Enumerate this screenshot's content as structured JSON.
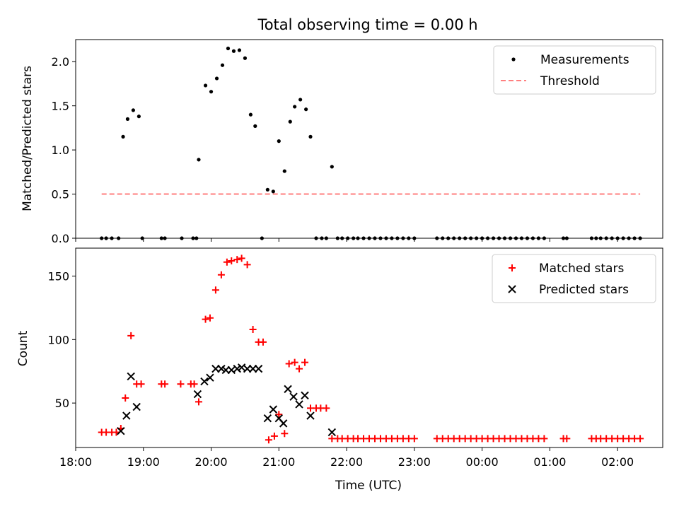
{
  "figure": {
    "title": "Total observing time = 0.00 h",
    "xlabel": "Time (UTC)",
    "xticks": [
      "18:00",
      "19:00",
      "20:00",
      "21:00",
      "22:00",
      "23:00",
      "00:00",
      "01:00",
      "02:00"
    ]
  },
  "chart_data": [
    {
      "type": "scatter",
      "ylabel": "Matched/Predicted stars",
      "xlim": [
        "18:00",
        "02:40"
      ],
      "ylim": [
        0,
        2.25
      ],
      "yticks": [
        "0.0",
        "0.5",
        "1.0",
        "1.5",
        "2.0"
      ],
      "legend": {
        "placement": "top-right",
        "entries": [
          "Measurements",
          "Threshold"
        ]
      },
      "series": [
        {
          "name": "Measurements",
          "color": "#000000",
          "marker": "dot",
          "points": [
            [
              "18:23",
              0
            ],
            [
              "18:27",
              0
            ],
            [
              "18:32",
              0
            ],
            [
              "18:38",
              0
            ],
            [
              "18:42",
              1.15
            ],
            [
              "18:46",
              1.35
            ],
            [
              "18:51",
              1.45
            ],
            [
              "18:56",
              1.38
            ],
            [
              "18:59",
              0
            ],
            [
              "19:16",
              0
            ],
            [
              "19:19",
              0
            ],
            [
              "19:34",
              0
            ],
            [
              "19:44",
              0
            ],
            [
              "19:47",
              0
            ],
            [
              "19:49",
              0.89
            ],
            [
              "19:55",
              1.73
            ],
            [
              "20:00",
              1.66
            ],
            [
              "20:05",
              1.81
            ],
            [
              "20:10",
              1.96
            ],
            [
              "20:15",
              2.15
            ],
            [
              "20:20",
              2.12
            ],
            [
              "20:25",
              2.13
            ],
            [
              "20:30",
              2.04
            ],
            [
              "20:35",
              1.4
            ],
            [
              "20:39",
              1.27
            ],
            [
              "20:45",
              0
            ],
            [
              "20:50",
              0.55
            ],
            [
              "20:55",
              0.53
            ],
            [
              "21:00",
              1.1
            ],
            [
              "21:05",
              0.76
            ],
            [
              "21:10",
              1.32
            ],
            [
              "21:14",
              1.49
            ],
            [
              "21:19",
              1.57
            ],
            [
              "21:24",
              1.46
            ],
            [
              "21:28",
              1.15
            ],
            [
              "21:33",
              0
            ],
            [
              "21:38",
              0
            ],
            [
              "21:42",
              0
            ],
            [
              "21:47",
              0.81
            ],
            [
              "21:52",
              0
            ],
            [
              "21:56",
              0
            ],
            [
              "22:01",
              0
            ],
            [
              "22:06",
              0
            ],
            [
              "22:10",
              0
            ],
            [
              "22:15",
              0
            ],
            [
              "22:20",
              0
            ],
            [
              "22:25",
              0
            ],
            [
              "22:30",
              0
            ],
            [
              "22:35",
              0
            ],
            [
              "22:40",
              0
            ],
            [
              "22:45",
              0
            ],
            [
              "22:50",
              0
            ],
            [
              "22:55",
              0
            ],
            [
              "23:00",
              0
            ],
            [
              "23:20",
              0
            ],
            [
              "23:25",
              0
            ],
            [
              "23:30",
              0
            ],
            [
              "23:35",
              0
            ],
            [
              "23:40",
              0
            ],
            [
              "23:45",
              0
            ],
            [
              "23:50",
              0
            ],
            [
              "23:55",
              0
            ],
            [
              "00:00",
              0
            ],
            [
              "00:05",
              0
            ],
            [
              "00:10",
              0
            ],
            [
              "00:15",
              0
            ],
            [
              "00:20",
              0
            ],
            [
              "00:25",
              0
            ],
            [
              "00:30",
              0
            ],
            [
              "00:35",
              0
            ],
            [
              "00:40",
              0
            ],
            [
              "00:45",
              0
            ],
            [
              "00:50",
              0
            ],
            [
              "00:55",
              0
            ],
            [
              "01:12",
              0
            ],
            [
              "01:15",
              0
            ],
            [
              "01:37",
              0
            ],
            [
              "01:41",
              0
            ],
            [
              "01:45",
              0
            ],
            [
              "01:50",
              0
            ],
            [
              "01:55",
              0
            ],
            [
              "02:00",
              0
            ],
            [
              "02:05",
              0
            ],
            [
              "02:10",
              0
            ],
            [
              "02:15",
              0
            ],
            [
              "02:20",
              0
            ]
          ]
        },
        {
          "name": "Threshold",
          "color": "#ff7f7f",
          "style": "dashed",
          "points": [
            [
              "18:23",
              0.5
            ],
            [
              "02:20",
              0.5
            ]
          ]
        }
      ]
    },
    {
      "type": "scatter",
      "ylabel": "Count",
      "xlim": [
        "18:00",
        "02:40"
      ],
      "ylim": [
        15,
        172
      ],
      "yticks": [
        "50",
        "100",
        "150"
      ],
      "legend": {
        "placement": "top-right",
        "entries": [
          "Matched stars",
          "Predicted stars"
        ]
      },
      "series": [
        {
          "name": "Matched stars",
          "color": "#ff0000",
          "marker": "plus",
          "points": [
            [
              "18:23",
              27
            ],
            [
              "18:27",
              27
            ],
            [
              "18:32",
              27
            ],
            [
              "18:36",
              27
            ],
            [
              "18:40",
              30
            ],
            [
              "18:44",
              54
            ],
            [
              "18:49",
              103
            ],
            [
              "18:54",
              65
            ],
            [
              "18:58",
              65
            ],
            [
              "19:16",
              65
            ],
            [
              "19:19",
              65
            ],
            [
              "19:33",
              65
            ],
            [
              "19:42",
              65
            ],
            [
              "19:45",
              65
            ],
            [
              "19:49",
              51
            ],
            [
              "19:55",
              116
            ],
            [
              "19:59",
              117
            ],
            [
              "20:04",
              139
            ],
            [
              "20:09",
              151
            ],
            [
              "20:14",
              161
            ],
            [
              "20:18",
              162
            ],
            [
              "20:23",
              163
            ],
            [
              "20:27",
              164
            ],
            [
              "20:32",
              159
            ],
            [
              "20:37",
              108
            ],
            [
              "20:42",
              98
            ],
            [
              "20:46",
              98
            ],
            [
              "20:51",
              21
            ],
            [
              "20:56",
              24
            ],
            [
              "21:00",
              41
            ],
            [
              "21:05",
              26
            ],
            [
              "21:09",
              81
            ],
            [
              "21:14",
              82
            ],
            [
              "21:18",
              77
            ],
            [
              "21:23",
              82
            ],
            [
              "21:28",
              46
            ],
            [
              "21:33",
              46
            ],
            [
              "21:37",
              46
            ],
            [
              "21:42",
              46
            ],
            [
              "21:47",
              22
            ],
            [
              "21:52",
              22
            ],
            [
              "21:56",
              22
            ],
            [
              "22:01",
              22
            ],
            [
              "22:06",
              22
            ],
            [
              "22:10",
              22
            ],
            [
              "22:15",
              22
            ],
            [
              "22:20",
              22
            ],
            [
              "22:25",
              22
            ],
            [
              "22:30",
              22
            ],
            [
              "22:35",
              22
            ],
            [
              "22:40",
              22
            ],
            [
              "22:45",
              22
            ],
            [
              "22:50",
              22
            ],
            [
              "22:55",
              22
            ],
            [
              "23:00",
              22
            ],
            [
              "23:20",
              22
            ],
            [
              "23:25",
              22
            ],
            [
              "23:30",
              22
            ],
            [
              "23:35",
              22
            ],
            [
              "23:40",
              22
            ],
            [
              "23:45",
              22
            ],
            [
              "23:50",
              22
            ],
            [
              "23:55",
              22
            ],
            [
              "00:00",
              22
            ],
            [
              "00:05",
              22
            ],
            [
              "00:10",
              22
            ],
            [
              "00:15",
              22
            ],
            [
              "00:20",
              22
            ],
            [
              "00:25",
              22
            ],
            [
              "00:30",
              22
            ],
            [
              "00:35",
              22
            ],
            [
              "00:40",
              22
            ],
            [
              "00:45",
              22
            ],
            [
              "00:50",
              22
            ],
            [
              "00:55",
              22
            ],
            [
              "01:12",
              22
            ],
            [
              "01:15",
              22
            ],
            [
              "01:37",
              22
            ],
            [
              "01:41",
              22
            ],
            [
              "01:45",
              22
            ],
            [
              "01:50",
              22
            ],
            [
              "01:55",
              22
            ],
            [
              "02:00",
              22
            ],
            [
              "02:05",
              22
            ],
            [
              "02:10",
              22
            ],
            [
              "02:15",
              22
            ],
            [
              "02:20",
              22
            ]
          ]
        },
        {
          "name": "Predicted stars",
          "color": "#000000",
          "marker": "x",
          "points": [
            [
              "18:40",
              28
            ],
            [
              "18:45",
              40
            ],
            [
              "18:49",
              71
            ],
            [
              "18:54",
              47
            ],
            [
              "19:48",
              57
            ],
            [
              "19:54",
              67
            ],
            [
              "19:59",
              70
            ],
            [
              "20:04",
              77
            ],
            [
              "20:09",
              77
            ],
            [
              "20:13",
              76
            ],
            [
              "20:18",
              76
            ],
            [
              "20:23",
              77
            ],
            [
              "20:27",
              78
            ],
            [
              "20:32",
              77
            ],
            [
              "20:37",
              77
            ],
            [
              "20:42",
              77
            ],
            [
              "20:50",
              38
            ],
            [
              "20:55",
              45
            ],
            [
              "21:00",
              38
            ],
            [
              "21:04",
              34
            ],
            [
              "21:08",
              61
            ],
            [
              "21:13",
              55
            ],
            [
              "21:18",
              49
            ],
            [
              "21:23",
              56
            ],
            [
              "21:28",
              40
            ],
            [
              "21:47",
              27
            ]
          ]
        }
      ]
    }
  ]
}
